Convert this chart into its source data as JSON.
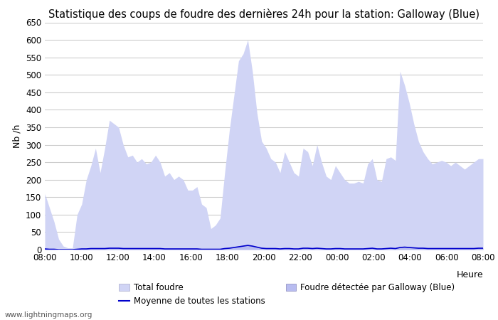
{
  "title": "Statistique des coups de foudre des dernières 24h pour la station: Galloway (Blue)",
  "xlabel": "Heure",
  "ylabel": "Nb /h",
  "ylim": [
    0,
    650
  ],
  "yticks": [
    0,
    50,
    100,
    150,
    200,
    250,
    300,
    350,
    400,
    450,
    500,
    550,
    600,
    650
  ],
  "background_color": "#ffffff",
  "grid_color": "#cccccc",
  "fill_color_total": "#d0d4f5",
  "fill_color_detected": "#b8bcf0",
  "line_color_mean": "#0000cc",
  "watermark": "www.lightningmaps.org",
  "time_labels": [
    "08:00",
    "10:00",
    "12:00",
    "14:00",
    "16:00",
    "18:00",
    "20:00",
    "22:00",
    "00:00",
    "02:00",
    "04:00",
    "06:00",
    "08:00"
  ],
  "total_foudre": [
    160,
    120,
    80,
    30,
    10,
    5,
    5,
    100,
    130,
    200,
    240,
    290,
    220,
    290,
    370,
    360,
    350,
    300,
    265,
    270,
    250,
    260,
    245,
    250,
    270,
    250,
    210,
    220,
    200,
    210,
    200,
    170,
    170,
    180,
    130,
    120,
    60,
    70,
    90,
    220,
    340,
    440,
    540,
    560,
    600,
    510,
    390,
    310,
    290,
    260,
    250,
    220,
    280,
    250,
    220,
    210,
    290,
    280,
    240,
    300,
    250,
    210,
    200,
    240,
    220,
    200,
    190,
    190,
    195,
    190,
    245,
    260,
    200,
    195,
    260,
    265,
    255,
    510,
    470,
    420,
    360,
    310,
    280,
    260,
    245,
    250,
    255,
    250,
    240,
    250,
    240,
    230,
    240,
    250,
    260,
    260
  ],
  "detected_foudre": [
    3,
    2,
    1,
    0,
    0,
    0,
    0,
    2,
    3,
    4,
    5,
    5,
    4,
    5,
    6,
    6,
    6,
    5,
    4,
    4,
    4,
    4,
    4,
    4,
    4,
    4,
    3,
    3,
    3,
    3,
    3,
    3,
    3,
    3,
    2,
    2,
    1,
    1,
    2,
    4,
    6,
    8,
    10,
    12,
    15,
    12,
    8,
    5,
    4,
    4,
    4,
    3,
    4,
    4,
    3,
    3,
    5,
    5,
    4,
    5,
    4,
    3,
    3,
    4,
    4,
    3,
    3,
    3,
    3,
    3,
    4,
    5,
    3,
    3,
    4,
    5,
    4,
    8,
    8,
    7,
    6,
    5,
    5,
    4,
    4,
    4,
    4,
    4,
    4,
    4,
    4,
    4,
    4,
    4,
    5,
    5
  ],
  "mean_stations": [
    2,
    1,
    1,
    0,
    0,
    0,
    0,
    1,
    2,
    2,
    3,
    3,
    3,
    3,
    4,
    4,
    4,
    3,
    3,
    3,
    3,
    3,
    3,
    3,
    3,
    3,
    2,
    2,
    2,
    2,
    2,
    2,
    2,
    2,
    1,
    1,
    1,
    1,
    1,
    3,
    4,
    6,
    8,
    10,
    12,
    10,
    7,
    4,
    3,
    3,
    3,
    2,
    3,
    3,
    2,
    2,
    4,
    4,
    3,
    4,
    3,
    2,
    2,
    3,
    3,
    2,
    2,
    2,
    2,
    2,
    3,
    4,
    2,
    2,
    3,
    4,
    3,
    6,
    7,
    6,
    5,
    4,
    4,
    3,
    3,
    3,
    3,
    3,
    3,
    3,
    3,
    3,
    3,
    3,
    4,
    4
  ],
  "legend_total_label": "Total foudre",
  "legend_detected_label": "Foudre détectée par Galloway (Blue)",
  "legend_mean_label": "Moyenne de toutes les stations",
  "title_fontsize": 10.5,
  "axis_fontsize": 9,
  "tick_fontsize": 8.5,
  "legend_fontsize": 8.5,
  "watermark_fontsize": 7.5
}
